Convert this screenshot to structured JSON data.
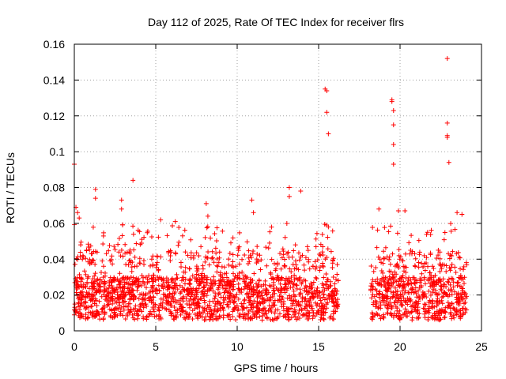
{
  "chart_data": {
    "type": "scatter",
    "title": "Day 112 of 2025, Rate Of TEC Index for receiver flrs",
    "xlabel": "GPS time / hours",
    "ylabel": "ROTI / TECUs",
    "xlim": [
      0,
      25
    ],
    "ylim": [
      0,
      0.16
    ],
    "xticks": [
      0,
      5,
      10,
      15,
      20,
      25
    ],
    "xtick_labels": [
      "0",
      "5",
      "10",
      "15",
      "20",
      "25"
    ],
    "yticks": [
      0,
      0.02,
      0.04,
      0.06,
      0.08,
      0.1,
      0.12,
      0.14,
      0.16
    ],
    "ytick_labels": [
      "0",
      "0.02",
      "0.04",
      "0.06",
      "0.08",
      "0.1",
      "0.12",
      "0.14",
      "0.16"
    ],
    "grid": true,
    "marker": "+",
    "color": "#ff0000",
    "data_gap_hours": [
      16.2,
      18.2
    ],
    "series": [
      {
        "name": "ROTI",
        "description_points": "dense noise floor 0.005-0.03 from 0 to 16.2 h and 18.2 to 24 h; notable peaks listed",
        "x": [
          0.0,
          0.1,
          0.2,
          0.3,
          1.3,
          1.3,
          2.9,
          2.9,
          3.6,
          5.3,
          6.2,
          8.1,
          8.2,
          10.9,
          11.0,
          13.2,
          13.2,
          13.9,
          15.4,
          15.5,
          15.5,
          15.6,
          15.6,
          18.7,
          19.5,
          19.5,
          19.6,
          19.6,
          19.6,
          19.6,
          19.9,
          20.3,
          22.9,
          22.9,
          22.9,
          22.9,
          23.0,
          23.5,
          23.8
        ],
        "y": [
          0.093,
          0.069,
          0.066,
          0.063,
          0.079,
          0.074,
          0.073,
          0.068,
          0.084,
          0.062,
          0.061,
          0.071,
          0.064,
          0.073,
          0.066,
          0.08,
          0.075,
          0.078,
          0.135,
          0.134,
          0.122,
          0.11,
          0.058,
          0.068,
          0.129,
          0.128,
          0.123,
          0.115,
          0.104,
          0.093,
          0.067,
          0.067,
          0.152,
          0.116,
          0.109,
          0.108,
          0.094,
          0.066,
          0.065
        ]
      }
    ]
  }
}
